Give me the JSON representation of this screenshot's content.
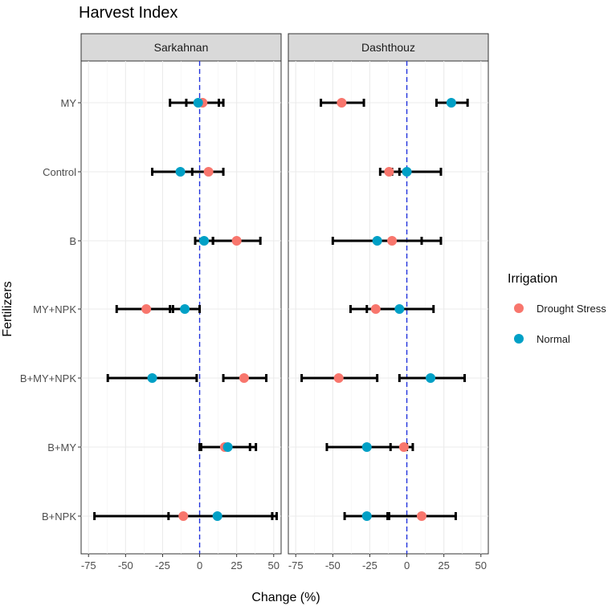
{
  "chart_data": {
    "type": "errorbar",
    "title": "Harvest Index",
    "xlabel": "Change (%)",
    "ylabel": "Fertilizers",
    "xlim": [
      -80,
      55
    ],
    "xticks": [
      -75,
      -50,
      -25,
      0,
      25,
      50
    ],
    "xtick_labels": [
      "-75",
      "-50",
      "-25",
      "0",
      "25",
      "50"
    ],
    "reference_line": 0,
    "categories": [
      "MY",
      "Control",
      "B",
      "MY+NPK",
      "B+MY+NPK",
      "B+MY",
      "B+NPK"
    ],
    "legend": {
      "title": "Irrigation",
      "entries": [
        {
          "label": "Drought Stress",
          "color": "#f8766d"
        },
        {
          "label": "Normal",
          "color": "#00a0c6"
        }
      ]
    },
    "colors": {
      "Drought Stress": "#f8766d",
      "Normal": "#00a0c6",
      "reference_line": "#2233dd",
      "strip_bg": "#d9d9d9",
      "grid": "#ebebeb"
    },
    "panels": [
      {
        "name": "Sarkahnan",
        "series": [
          {
            "name": "Drought Stress",
            "values": [
              2,
              6,
              25,
              -36,
              30,
              17,
              -11
            ],
            "lower": [
              -9,
              -5,
              9,
              -56,
              16,
              1,
              -71
            ],
            "upper": [
              13,
              16,
              41,
              -18,
              45,
              34,
              49
            ]
          },
          {
            "name": "Normal",
            "values": [
              -1,
              -13,
              3,
              -10,
              -32,
              19,
              12
            ],
            "lower": [
              -20,
              -32,
              -3,
              -20,
              -62,
              0,
              -21
            ],
            "upper": [
              16,
              6,
              9,
              0,
              -2,
              38,
              52
            ]
          }
        ]
      },
      {
        "name": "Dashthouz",
        "series": [
          {
            "name": "Drought Stress",
            "values": [
              -44,
              -12,
              -10,
              -21,
              -46,
              -2,
              10
            ],
            "lower": [
              -58,
              -18,
              -50,
              -38,
              -71,
              -11,
              -13
            ],
            "upper": [
              -29,
              -5,
              23,
              -6,
              -20,
              4,
              33
            ]
          },
          {
            "name": "Normal",
            "values": [
              30,
              0,
              -20,
              -5,
              16,
              -27,
              -27
            ],
            "lower": [
              20,
              -10,
              -20,
              -27,
              -5,
              -54,
              -42
            ],
            "upper": [
              41,
              23,
              10,
              18,
              39,
              0,
              -12
            ]
          }
        ]
      }
    ]
  }
}
